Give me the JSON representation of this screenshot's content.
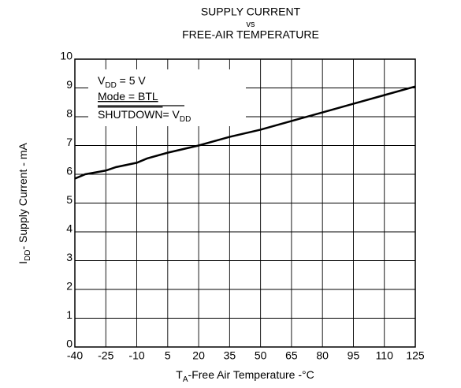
{
  "chart_data": {
    "type": "line",
    "title": [
      "SUPPLY CURRENT",
      "vs",
      "FREE-AIR TEMPERATURE"
    ],
    "xlabel": [
      {
        "text": "T"
      },
      {
        "text": "A",
        "sub": true
      },
      {
        "text": "-Free Air Temperature -°C"
      }
    ],
    "ylabel": [
      {
        "text": "I"
      },
      {
        "text": "DD",
        "sub": true
      },
      {
        "text": "- Supply Current - mA"
      }
    ],
    "annotations": [
      [
        {
          "text": "V"
        },
        {
          "text": "DD",
          "sub": true
        },
        {
          "text": " = 5 V"
        }
      ],
      [
        {
          "text": "Mode = BTL",
          "underline": true
        }
      ],
      [
        {
          "text": "SHUTDOWN",
          "overline": true
        },
        {
          "text": "= V"
        },
        {
          "text": "DD",
          "sub": true
        }
      ]
    ],
    "x": [
      -40,
      -35,
      -25,
      -20,
      -10,
      -5,
      5,
      20,
      35,
      50,
      65,
      80,
      95,
      110,
      125
    ],
    "values": [
      5.85,
      6.0,
      6.13,
      6.25,
      6.4,
      6.55,
      6.75,
      7.0,
      7.3,
      7.55,
      7.85,
      8.15,
      8.45,
      8.75,
      9.05
    ],
    "color": "#000000",
    "xlim": [
      -40,
      125
    ],
    "xticks": [
      -40,
      -25,
      -10,
      5,
      20,
      35,
      50,
      65,
      80,
      95,
      110,
      125
    ],
    "ylim": [
      0,
      10
    ],
    "yticks": [
      0,
      1,
      2,
      3,
      4,
      5,
      6,
      7,
      8,
      9,
      10
    ],
    "grid": true
  }
}
